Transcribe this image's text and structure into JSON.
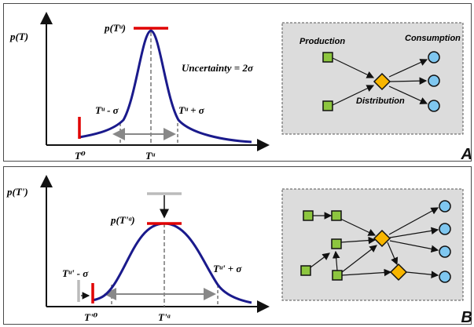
{
  "panelA": {
    "letter": "A",
    "y_axis_label": "p(T)",
    "peak_label": "p(Tᵘ)",
    "left_sigma_label": "Tᵘ - σ",
    "right_sigma_label": "Tᵘ + σ",
    "t0_label": "T⁰",
    "tu_label": "Tᵘ",
    "uncertainty_label": "Uncertainty = 2σ",
    "network": {
      "production_label": "Production",
      "consumption_label": "Consumption",
      "distribution_label": "Distribution"
    }
  },
  "panelB": {
    "letter": "B",
    "y_axis_label": "p(T')",
    "peak_label": "p(T'ᵃ)",
    "left_sigma_label": "Tᵘ' - σ",
    "right_sigma_label": "Tᵘ' + σ",
    "t0_label": "T'⁰",
    "ta_label": "T'ᵃ"
  },
  "colors": {
    "curve": "#1a1a8c",
    "marker": "#e00000",
    "production": "#8dc63f",
    "distribution": "#f7b500",
    "consumption": "#7fc7f0",
    "network_bg": "#dcdcdc"
  }
}
